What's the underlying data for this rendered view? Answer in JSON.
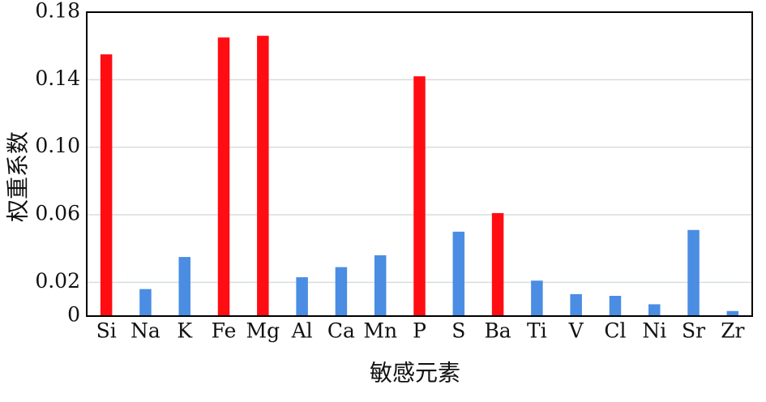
{
  "chart_data": {
    "type": "bar",
    "x_label": "敏感元素",
    "y_label": "权重系数",
    "categories": [
      "Si",
      "Na",
      "K",
      "Fe",
      "Mg",
      "Al",
      "Ca",
      "Mn",
      "P",
      "S",
      "Ba",
      "Ti",
      "V",
      "Cl",
      "Ni",
      "Sr",
      "Zr"
    ],
    "values": [
      0.155,
      0.016,
      0.035,
      0.165,
      0.166,
      0.023,
      0.029,
      0.036,
      0.142,
      0.05,
      0.061,
      0.021,
      0.013,
      0.012,
      0.007,
      0.051,
      0.003
    ],
    "colors": [
      "#ff0d12",
      "#4a8de3",
      "#4a8de3",
      "#ff0d12",
      "#ff0d12",
      "#4a8de3",
      "#4a8de3",
      "#4a8de3",
      "#ff0d12",
      "#4a8de3",
      "#ff0d12",
      "#4a8de3",
      "#4a8de3",
      "#4a8de3",
      "#4a8de3",
      "#4a8de3",
      "#4a8de3"
    ],
    "ylim": [
      0,
      0.18
    ],
    "yticks": [
      0,
      0.02,
      0.06,
      {
        "value": 0.1,
        "label": "0.10"
      },
      0.14,
      0.18
    ],
    "grid": true
  }
}
